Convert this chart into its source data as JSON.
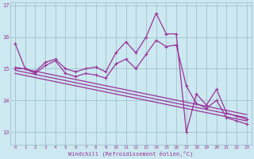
{
  "xlabel": "Windchill (Refroidissement éolien,°C)",
  "bg_color": "#cce8f0",
  "grid_color": "#99bbcc",
  "line_color": "#993399",
  "ylim": [
    12.6,
    17.1
  ],
  "xlim": [
    -0.5,
    23.5
  ],
  "yticks": [
    13,
    14,
    15,
    16,
    17
  ],
  "xticks": [
    0,
    1,
    2,
    3,
    4,
    5,
    6,
    7,
    8,
    9,
    10,
    11,
    12,
    13,
    14,
    15,
    16,
    17,
    18,
    19,
    20,
    21,
    22,
    23
  ],
  "line1_y": [
    15.8,
    15.0,
    14.9,
    15.2,
    15.3,
    15.0,
    14.9,
    15.0,
    15.05,
    14.9,
    15.5,
    15.85,
    15.5,
    16.0,
    16.75,
    16.1,
    16.1,
    13.0,
    14.2,
    13.85,
    14.35,
    13.6,
    13.5,
    13.4
  ],
  "line2_y": [
    15.0,
    15.0,
    14.85,
    15.1,
    15.25,
    14.85,
    14.75,
    14.85,
    14.8,
    14.7,
    15.15,
    15.3,
    15.0,
    15.45,
    15.9,
    15.7,
    15.75,
    14.45,
    13.9,
    13.75,
    14.0,
    13.45,
    13.35,
    13.25
  ],
  "trend1_x": [
    0,
    23
  ],
  "trend1_y": [
    15.05,
    13.55
  ],
  "trend2_x": [
    0,
    23
  ],
  "trend2_y": [
    14.95,
    13.45
  ],
  "trend3_x": [
    0,
    23
  ],
  "trend3_y": [
    14.85,
    13.35
  ]
}
